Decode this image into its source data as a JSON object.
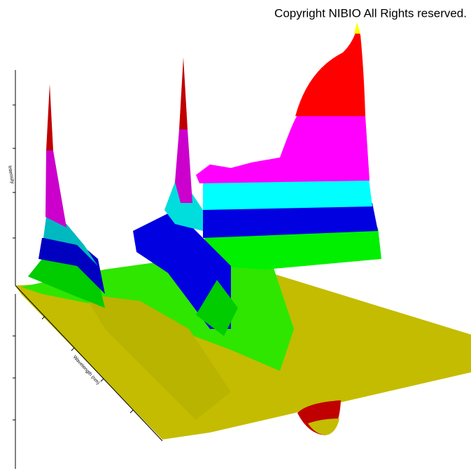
{
  "header": {
    "copyright": "Copyright NIBIO All Rights reserved."
  },
  "axes": {
    "vertical_label": "Intensity",
    "depth_label": "Wavelength (nm)"
  }
}
